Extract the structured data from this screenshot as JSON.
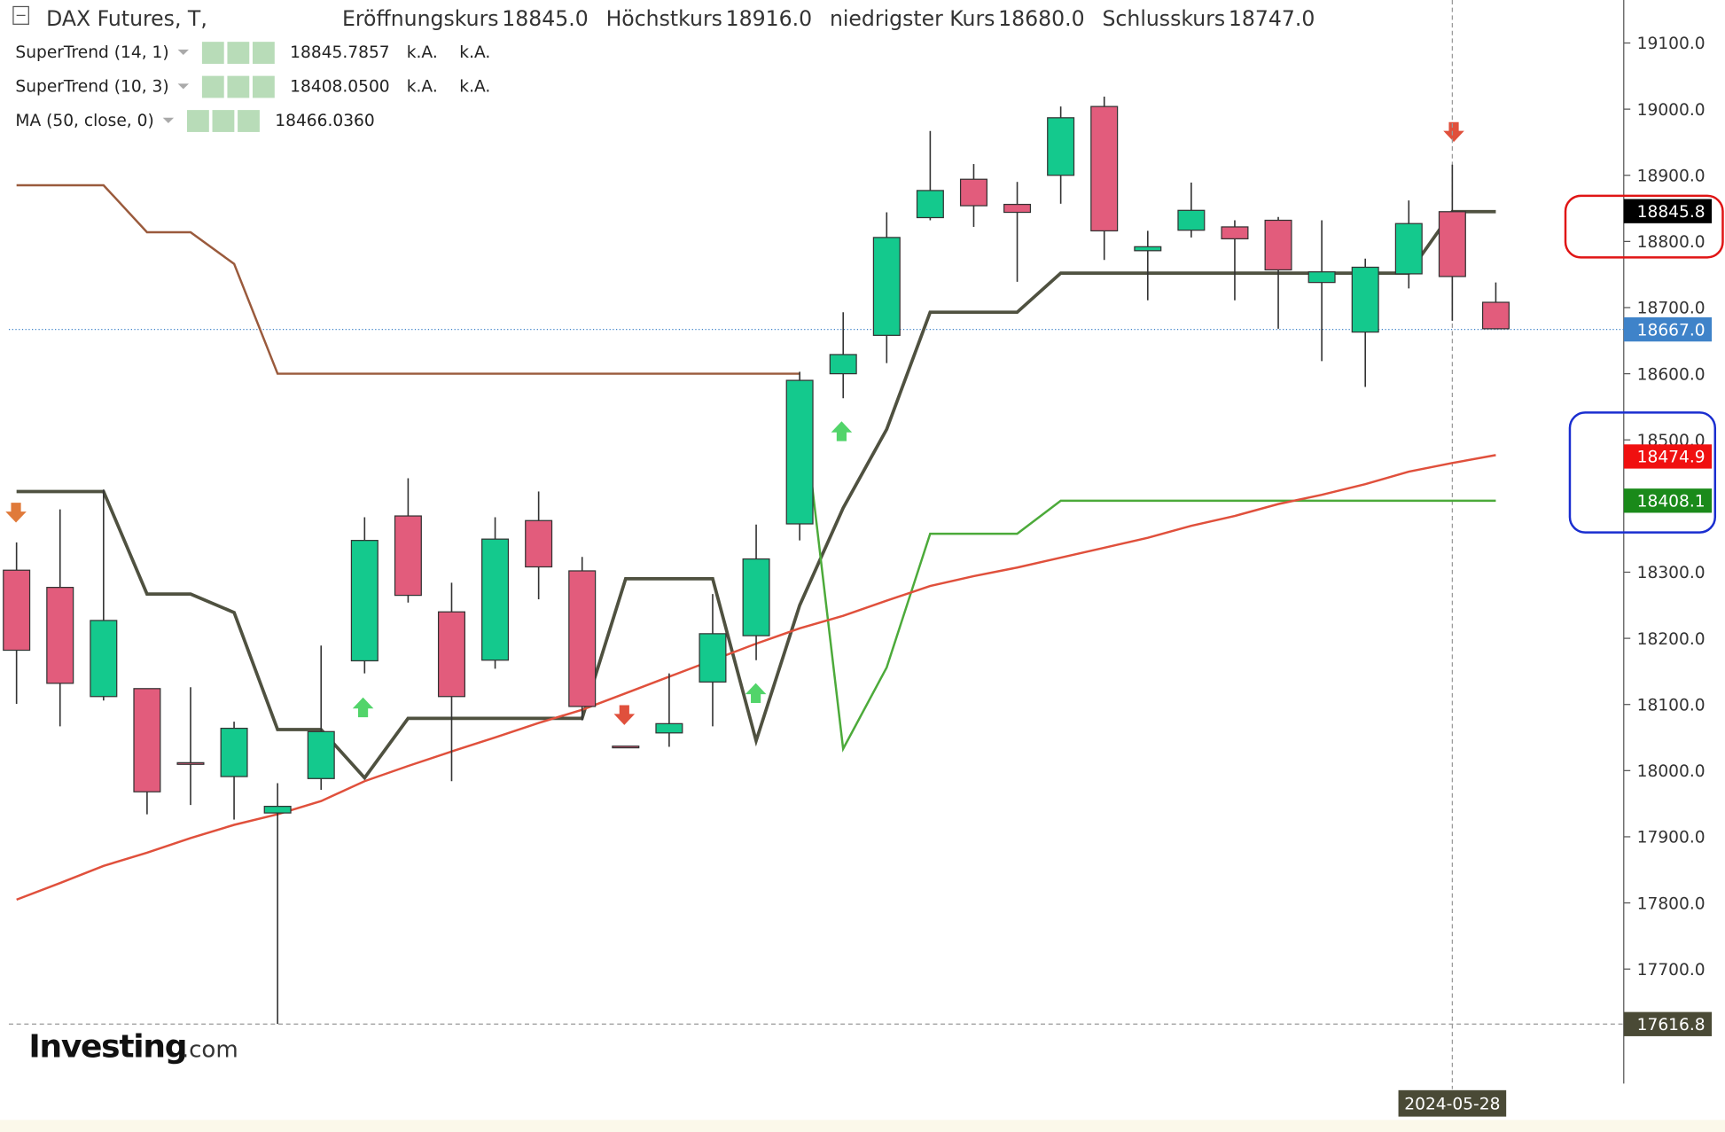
{
  "chart_data": {
    "type": "candlestick",
    "title": "DAX Futures, T,",
    "ohlc_legend": [
      {
        "label": "Eröffnungskurs",
        "value": "18845.0"
      },
      {
        "label": "Höchstkurs",
        "value": "18916.0"
      },
      {
        "label": "niedrigster Kurs",
        "value": "18680.0"
      },
      {
        "label": "Schlusskurs",
        "value": "18747.0"
      }
    ],
    "indicator_legend": [
      {
        "name": "SuperTrend (14, 1)",
        "value": "18845.7857",
        "extra": [
          "k.A.",
          "k.A."
        ],
        "color": "#000000"
      },
      {
        "name": "SuperTrend (10, 3)",
        "value": "18408.0500",
        "extra": [
          "k.A.",
          "k.A."
        ],
        "color": "#1a8a1a"
      },
      {
        "name": "MA (50, close, 0)",
        "value": "18466.0360",
        "extra": [],
        "color": "#e01010"
      }
    ],
    "categories": [
      null,
      null,
      null,
      null,
      null,
      null,
      null,
      null,
      null,
      null,
      null,
      null,
      null,
      null,
      null,
      null,
      null,
      null,
      null,
      null,
      null,
      null,
      null,
      null,
      null,
      null,
      null,
      null,
      null,
      null,
      null,
      null,
      null,
      "2024-05-28",
      null
    ],
    "open": [
      18303,
      18277,
      18112,
      18124,
      18012,
      17991,
      17936,
      17988,
      18166,
      18385,
      18240,
      18167,
      18378,
      18302,
      18037,
      18057,
      18134,
      18204,
      18373,
      18600,
      18658,
      18836,
      18894,
      18856,
      18900,
      19004,
      18786,
      18817,
      18822,
      18832,
      18738,
      18663,
      18751,
      18845,
      18708
    ],
    "high": [
      18345,
      18395,
      18425,
      18124,
      18126,
      18074,
      17981,
      18189,
      18383,
      18442,
      18284,
      18383,
      18422,
      18323,
      18037,
      18147,
      18267,
      18372,
      18603,
      18693,
      18844,
      18967,
      18917,
      18890,
      19004,
      19019,
      18816,
      18889,
      18832,
      18837,
      18832,
      18774,
      18862,
      18916,
      18738
    ],
    "low": [
      18101,
      18067,
      18106,
      17934,
      17948,
      17926,
      17617,
      17971,
      18147,
      18254,
      17984,
      18154,
      18259,
      18076,
      18035,
      18036,
      18067,
      18167,
      18348,
      18563,
      18616,
      18832,
      18822,
      18739,
      18857,
      18772,
      18711,
      18806,
      18711,
      18668,
      18619,
      18580,
      18729,
      18680,
      18667
    ],
    "close": [
      18182,
      18132,
      18227,
      17968,
      18010,
      18064,
      17946,
      18059,
      18348,
      18265,
      18112,
      18350,
      18308,
      18097,
      18035,
      18071,
      18207,
      18320,
      18590,
      18629,
      18806,
      18877,
      18854,
      18844,
      18987,
      18816,
      18792,
      18847,
      18804,
      18757,
      18754,
      18761,
      18827,
      18747,
      18668
    ],
    "up_color": "#14c98d",
    "down_color": "#e25c7c",
    "series": [
      {
        "name": "SuperTrend (14, 1)",
        "color": "#4f5140",
        "values": [
          18422,
          18422,
          18422,
          18267,
          18267,
          18239,
          18062,
          18062,
          17989,
          18079,
          18079,
          18079,
          18079,
          18079,
          18290,
          18290,
          18290,
          18045,
          18250,
          18397,
          18516,
          18693,
          18693,
          18693,
          18752,
          18752,
          18752,
          18752,
          18752,
          18752,
          18752,
          18752,
          18752,
          18845,
          18845
        ]
      },
      {
        "name": "SuperTrend (10, 3) upper",
        "color": "#9a5a3c",
        "values": [
          18885,
          18885,
          18885,
          18814,
          18814,
          18766,
          18600,
          18600,
          18600,
          18600,
          18600,
          18600,
          18600,
          18600,
          18600,
          18600,
          18600,
          18600,
          18600,
          null,
          null,
          null,
          null,
          null,
          null,
          null,
          null,
          null,
          null,
          null,
          null,
          null,
          null,
          null,
          null
        ]
      },
      {
        "name": "SuperTrend (10, 3) lower",
        "color": "#4caa3a",
        "values": [
          null,
          null,
          null,
          null,
          null,
          null,
          null,
          null,
          null,
          null,
          null,
          null,
          null,
          null,
          null,
          null,
          null,
          null,
          18590,
          18033,
          18156,
          18358,
          18358,
          18358,
          18408,
          18408,
          18408,
          18408,
          18408,
          18408,
          18408,
          18408,
          18408,
          18408,
          18408
        ]
      },
      {
        "name": "MA (50, close, 0)",
        "color": "#e0503c",
        "values": [
          17805,
          17830,
          17856,
          17876,
          17898,
          17918,
          17934,
          17954,
          17984,
          18007,
          18029,
          18050,
          18072,
          18092,
          18117,
          18142,
          18167,
          18192,
          18215,
          18234,
          18257,
          18279,
          18294,
          18307,
          18322,
          18337,
          18352,
          18370,
          18385,
          18403,
          18417,
          18433,
          18452,
          18465,
          18477
        ]
      }
    ],
    "ylim": [
      17462,
      19165
    ],
    "yticks": [
      {
        "value": 17700,
        "label": "17700.0"
      },
      {
        "value": 17800,
        "label": "17800.0"
      },
      {
        "value": 17900,
        "label": "17900.0"
      },
      {
        "value": 18000,
        "label": "18000.0"
      },
      {
        "value": 18100,
        "label": "18100.0"
      },
      {
        "value": 18200,
        "label": "18200.0"
      },
      {
        "value": 18300,
        "label": "18300.0"
      },
      {
        "value": 18400,
        "label": "18400.0"
      },
      {
        "value": 18500,
        "label": "18500.0"
      },
      {
        "value": 18600,
        "label": "18600.0"
      },
      {
        "value": 18700,
        "label": "18700.0"
      },
      {
        "value": 18800,
        "label": "18800.0"
      },
      {
        "value": 18900,
        "label": "18900.0"
      },
      {
        "value": 19000,
        "label": "19000.0"
      },
      {
        "value": 19100,
        "label": "19100.0"
      }
    ],
    "price_markers": [
      {
        "value": 18845.8,
        "color": "#000000",
        "line": "none"
      },
      {
        "value": 18667,
        "label": "18667.0",
        "color": "#3f83c9",
        "line": "dotted"
      },
      {
        "value": 18474.9,
        "color": "#f01010",
        "line": "none"
      },
      {
        "value": 18408.1,
        "color": "#1a8a1a",
        "line": "none"
      },
      {
        "value": 17616.8,
        "color": "#4a4a36",
        "line": "dashed"
      }
    ],
    "watermark": "Investing",
    "watermark_suffix": ".com"
  }
}
